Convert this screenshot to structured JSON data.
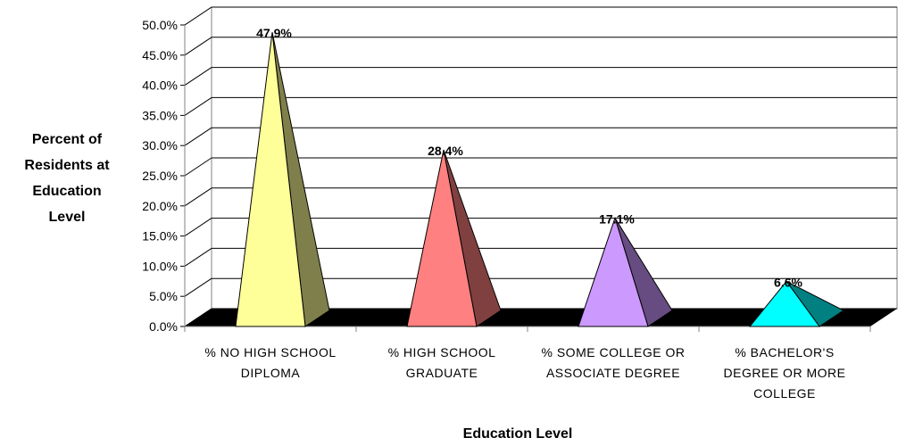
{
  "chart_data": {
    "type": "bar",
    "bar_shape": "pyramid",
    "categories": [
      "% NO HIGH SCHOOL DIPLOMA",
      "% HIGH SCHOOL GRADUATE",
      "% SOME COLLEGE OR ASSOCIATE DEGREE",
      "% BACHELOR'S DEGREE OR MORE COLLEGE"
    ],
    "category_lines": [
      [
        "% NO HIGH SCHOOL",
        "DIPLOMA"
      ],
      [
        "% HIGH SCHOOL",
        "GRADUATE"
      ],
      [
        "% SOME COLLEGE OR",
        "ASSOCIATE DEGREE"
      ],
      [
        "% BACHELOR'S",
        "DEGREE OR MORE",
        "COLLEGE"
      ]
    ],
    "values": [
      47.9,
      28.4,
      17.1,
      6.6
    ],
    "data_labels": [
      "47.9%",
      "28.4%",
      "17.1%",
      "6.6%"
    ],
    "colors": [
      {
        "front": "#ffff99",
        "side": "#7f7f4c"
      },
      {
        "front": "#ff8080",
        "side": "#804040"
      },
      {
        "front": "#cc99ff",
        "side": "#664c80"
      },
      {
        "front": "#00ffff",
        "side": "#008080"
      }
    ],
    "ylabel": "Percent of Residents at Education Level",
    "ylabel_lines": [
      "Percent of",
      "Residents at",
      "Education",
      "Level"
    ],
    "xlabel": "Education Level",
    "ylim": [
      0,
      50
    ],
    "yticks": [
      "0.0%",
      "5.0%",
      "10.0%",
      "15.0%",
      "20.0%",
      "25.0%",
      "30.0%",
      "35.0%",
      "40.0%",
      "45.0%",
      "50.0%"
    ],
    "grid": true,
    "legend": "none"
  }
}
